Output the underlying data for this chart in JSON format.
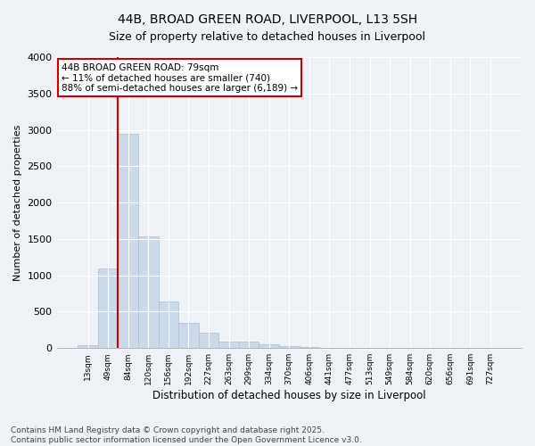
{
  "title_line1": "44B, BROAD GREEN ROAD, LIVERPOOL, L13 5SH",
  "title_line2": "Size of property relative to detached houses in Liverpool",
  "xlabel": "Distribution of detached houses by size in Liverpool",
  "ylabel": "Number of detached properties",
  "bar_color": "#ccd9e8",
  "bar_edge_color": "#aabdd4",
  "background_color": "#eef2f7",
  "grid_color": "#ffffff",
  "annotation_box_color": "#cc0000",
  "vline_color": "#cc0000",
  "bin_labels": [
    "13sqm",
    "49sqm",
    "84sqm",
    "120sqm",
    "156sqm",
    "192sqm",
    "227sqm",
    "263sqm",
    "299sqm",
    "334sqm",
    "370sqm",
    "406sqm",
    "441sqm",
    "477sqm",
    "513sqm",
    "549sqm",
    "584sqm",
    "620sqm",
    "656sqm",
    "691sqm",
    "727sqm"
  ],
  "bar_values": [
    45,
    1100,
    2950,
    1530,
    640,
    350,
    215,
    90,
    85,
    50,
    30,
    20,
    0,
    0,
    0,
    0,
    0,
    0,
    0,
    0,
    0
  ],
  "vline_bin_index": 1.5,
  "annotation_text": "44B BROAD GREEN ROAD: 79sqm\n← 11% of detached houses are smaller (740)\n88% of semi-detached houses are larger (6,189) →",
  "ylim": [
    0,
    4000
  ],
  "yticks": [
    0,
    500,
    1000,
    1500,
    2000,
    2500,
    3000,
    3500,
    4000
  ],
  "footnote": "Contains HM Land Registry data © Crown copyright and database right 2025.\nContains public sector information licensed under the Open Government Licence v3.0.",
  "title_fontsize": 10,
  "annotation_fontsize": 7.5,
  "footnote_fontsize": 6.5,
  "ylabel_fontsize": 8,
  "xlabel_fontsize": 8.5
}
